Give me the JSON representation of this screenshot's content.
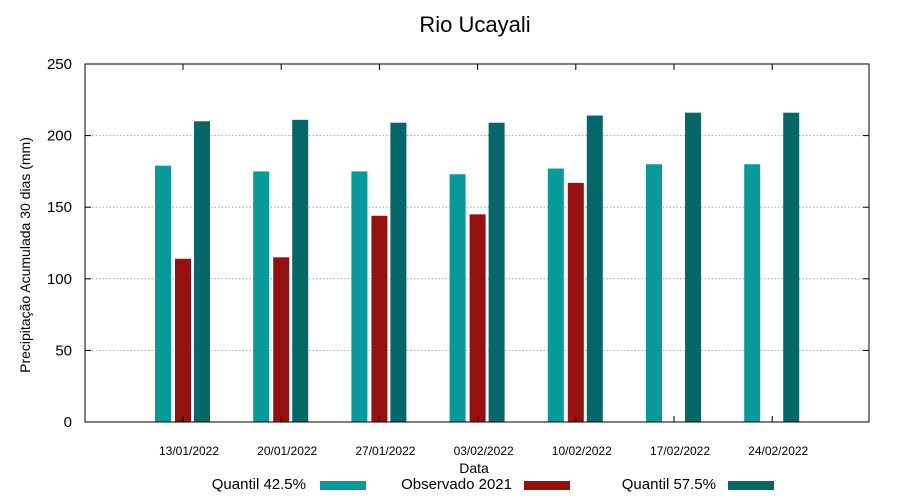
{
  "chart_data": {
    "type": "bar",
    "title": "Rio Ucayali",
    "xlabel": "Data",
    "ylabel": "Precipitação Acumulada 30 dias (mm)",
    "ylim": [
      0,
      250
    ],
    "yticks": [
      0,
      50,
      100,
      150,
      200,
      250
    ],
    "grid": true,
    "legend_position": "bottom",
    "categories": [
      "13/01/2022",
      "20/01/2022",
      "27/01/2022",
      "03/02/2022",
      "10/02/2022",
      "17/02/2022",
      "24/02/2022"
    ],
    "series": [
      {
        "name": "Quantil 42.5%",
        "color": "#069a9a",
        "values": [
          179,
          175,
          175,
          173,
          177,
          180,
          180
        ]
      },
      {
        "name": "Observado 2021",
        "color": "#961010",
        "values": [
          114,
          115,
          144,
          145,
          167,
          null,
          null
        ]
      },
      {
        "name": "Quantil 57.5%",
        "color": "#046868",
        "values": [
          210,
          211,
          209,
          209,
          214,
          216,
          216
        ]
      }
    ]
  }
}
